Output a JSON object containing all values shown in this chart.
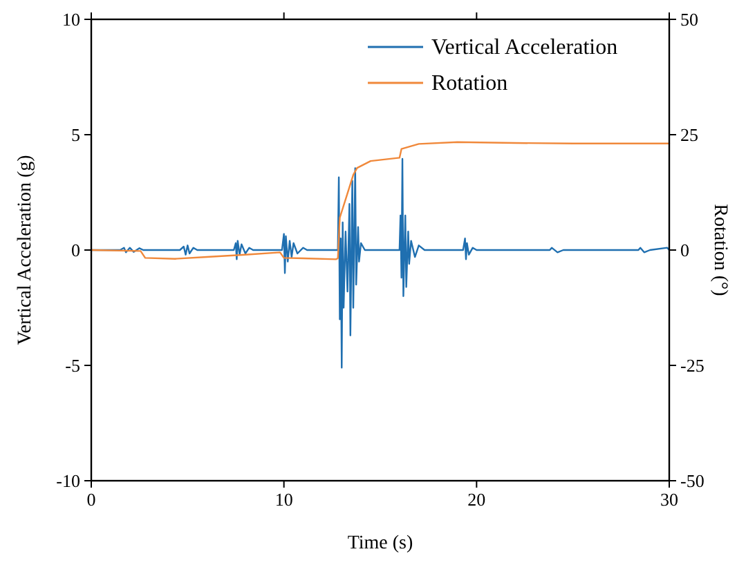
{
  "chart_data": {
    "type": "line",
    "xlabel": "Time (s)",
    "ylabel": "Vertical Acceleration (g)",
    "y2label": "Rotation (°)",
    "xlim": [
      0,
      30
    ],
    "xticks": [
      0,
      10,
      20,
      30
    ],
    "ylim": [
      -10,
      10
    ],
    "yticks": [
      -10,
      -5,
      0,
      5,
      10
    ],
    "y2lim": [
      -50,
      50
    ],
    "y2ticks": [
      -50,
      -25,
      0,
      25,
      50
    ],
    "legend": "top right",
    "grid": false,
    "series": [
      {
        "name": "Vertical Acceleration",
        "color": "#1f6fb0",
        "x": [
          0,
          1.5,
          1.7,
          1.8,
          2.0,
          2.2,
          2.5,
          2.7,
          4.6,
          4.8,
          4.9,
          5.0,
          5.1,
          5.3,
          5.5,
          7.4,
          7.5,
          7.55,
          7.6,
          7.7,
          7.8,
          8.0,
          8.2,
          8.4,
          9.9,
          10.0,
          10.05,
          10.1,
          10.2,
          10.3,
          10.4,
          10.5,
          10.7,
          11.0,
          11.2,
          12.8,
          12.85,
          12.9,
          12.95,
          13.0,
          13.05,
          13.1,
          13.2,
          13.3,
          13.4,
          13.45,
          13.55,
          13.6,
          13.7,
          13.75,
          13.85,
          13.9,
          14.0,
          14.2,
          16.0,
          16.05,
          16.1,
          16.15,
          16.2,
          16.3,
          16.35,
          16.45,
          16.5,
          16.6,
          16.8,
          17.0,
          17.3,
          19.3,
          19.4,
          19.45,
          19.5,
          19.6,
          19.8,
          20,
          23.8,
          23.9,
          24.2,
          24.5,
          28.4,
          28.5,
          28.7,
          29,
          29.9,
          30
        ],
        "values": [
          0,
          0,
          0.1,
          -0.1,
          0.1,
          -0.08,
          0.08,
          0,
          0,
          0.15,
          -0.2,
          0.2,
          -0.15,
          0.1,
          0,
          0,
          0.3,
          -0.4,
          0.4,
          -0.2,
          0.25,
          -0.15,
          0.1,
          0,
          0,
          0.7,
          -1.0,
          0.6,
          -0.5,
          0.4,
          -0.3,
          0.3,
          -0.15,
          0.1,
          0,
          0,
          3.15,
          -3.0,
          0.5,
          -5.1,
          1.2,
          -2.5,
          0.8,
          -1.8,
          2.0,
          -3.7,
          3.0,
          -2.5,
          3.55,
          -1.5,
          1.0,
          -0.5,
          0.3,
          0,
          0,
          1.5,
          -1.2,
          3.95,
          -2.0,
          1.5,
          -1.6,
          0.8,
          -0.6,
          0.4,
          -0.3,
          0.2,
          0,
          0,
          0.5,
          -0.4,
          0.3,
          -0.2,
          0.1,
          0,
          0,
          0.1,
          -0.1,
          0,
          0,
          0.1,
          -0.1,
          0,
          0.1,
          0
        ]
      },
      {
        "name": "Rotation",
        "color": "#f0883a",
        "axis": "y2",
        "x": [
          0,
          2.56,
          2.8,
          4.35,
          6,
          8,
          9.8,
          10.0,
          11,
          12.7,
          12.8,
          12.9,
          13.3,
          13.6,
          13.8,
          14.5,
          16,
          16.1,
          17,
          19,
          22,
          25,
          30
        ],
        "values": [
          0,
          -0.2,
          -1.7,
          -1.9,
          -1.5,
          -1,
          -0.5,
          -1.7,
          -1.8,
          -2.0,
          -1.8,
          7,
          12.3,
          16.3,
          17.8,
          19.3,
          20,
          21.9,
          23,
          23.4,
          23.2,
          23.1,
          23.1
        ]
      }
    ]
  }
}
